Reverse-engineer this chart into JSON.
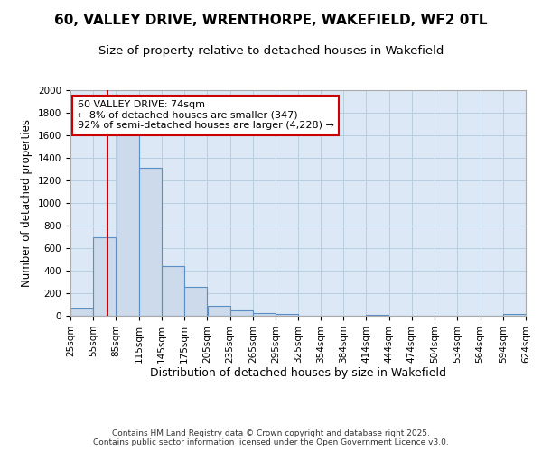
{
  "title_line1": "60, VALLEY DRIVE, WRENTHORPE, WAKEFIELD, WF2 0TL",
  "title_line2": "Size of property relative to detached houses in Wakefield",
  "xlabel": "Distribution of detached houses by size in Wakefield",
  "ylabel": "Number of detached properties",
  "bin_edges": [
    25,
    55,
    85,
    115,
    145,
    175,
    205,
    235,
    265,
    295,
    325,
    354,
    384,
    414,
    444,
    474,
    504,
    534,
    564,
    594,
    624
  ],
  "bar_heights": [
    65,
    695,
    1660,
    1310,
    440,
    255,
    90,
    50,
    25,
    20,
    0,
    0,
    0,
    5,
    0,
    0,
    0,
    0,
    0,
    20
  ],
  "bar_face_color": "#ccdaec",
  "bar_edge_color": "#5b8ec4",
  "tick_labels": [
    "25sqm",
    "55sqm",
    "85sqm",
    "115sqm",
    "145sqm",
    "175sqm",
    "205sqm",
    "235sqm",
    "265sqm",
    "295sqm",
    "325sqm",
    "354sqm",
    "384sqm",
    "414sqm",
    "444sqm",
    "474sqm",
    "504sqm",
    "534sqm",
    "564sqm",
    "594sqm",
    "624sqm"
  ],
  "property_size": 74,
  "red_line_color": "#cc0000",
  "annotation_text": "60 VALLEY DRIVE: 74sqm\n← 8% of detached houses are smaller (347)\n92% of semi-detached houses are larger (4,228) →",
  "annotation_box_edgecolor": "#cc0000",
  "annotation_box_facecolor": "white",
  "ylim": [
    0,
    2000
  ],
  "yticks": [
    0,
    200,
    400,
    600,
    800,
    1000,
    1200,
    1400,
    1600,
    1800,
    2000
  ],
  "grid_color": "#b8cfe0",
  "background_color": "#dce8f5",
  "footer_text": "Contains HM Land Registry data © Crown copyright and database right 2025.\nContains public sector information licensed under the Open Government Licence v3.0.",
  "title_fontsize": 11,
  "subtitle_fontsize": 9.5,
  "xlabel_fontsize": 9,
  "ylabel_fontsize": 8.5,
  "tick_fontsize": 7.5,
  "annotation_fontsize": 8,
  "footer_fontsize": 6.5
}
